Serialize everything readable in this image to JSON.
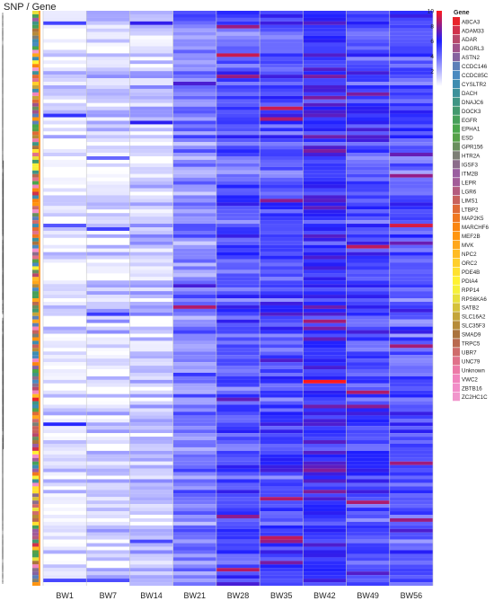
{
  "header": {
    "corner_title": "SNP / Gene"
  },
  "chart_data": {
    "type": "heatmap",
    "title": "",
    "xlabel": "",
    "ylabel": "",
    "columns": [
      "BW1",
      "BW7",
      "BW14",
      "BW21",
      "BW28",
      "BW35",
      "BW42",
      "BW49",
      "BW56"
    ],
    "row_count": 162,
    "colorbar": {
      "ticks": [
        2,
        4,
        6,
        8,
        10
      ],
      "range": [
        0,
        10
      ],
      "stops": [
        "#ffffff",
        "#1e1eff",
        "#ff1a1a"
      ]
    },
    "dendrogram": "rows",
    "annotation_column": "Gene",
    "legend": {
      "title": "Gene",
      "position": "right",
      "items": [
        {
          "label": "ABCA3",
          "color": "#e8242a"
        },
        {
          "label": "ADAM33",
          "color": "#d1314b"
        },
        {
          "label": "ADAR",
          "color": "#b8496b"
        },
        {
          "label": "ADGRL3",
          "color": "#a0538a"
        },
        {
          "label": "ASTN2",
          "color": "#86639f"
        },
        {
          "label": "CCDC146",
          "color": "#5d7fb8"
        },
        {
          "label": "CCDC85C",
          "color": "#4a8ac0"
        },
        {
          "label": "CYSLTR2",
          "color": "#3f8db0"
        },
        {
          "label": "DACH",
          "color": "#3d919a"
        },
        {
          "label": "DNAJC6",
          "color": "#3f9584"
        },
        {
          "label": "DOCK3",
          "color": "#43996e"
        },
        {
          "label": "EGFR",
          "color": "#47a05a"
        },
        {
          "label": "EPHA1",
          "color": "#4aa64b"
        },
        {
          "label": "ESD",
          "color": "#56a148"
        },
        {
          "label": "GPR156",
          "color": "#6a8f5e"
        },
        {
          "label": "HTR2A",
          "color": "#7d7f76"
        },
        {
          "label": "IGSF3",
          "color": "#8c6d8b"
        },
        {
          "label": "ITM2B",
          "color": "#9a5ea0"
        },
        {
          "label": "LEPR",
          "color": "#a25c98"
        },
        {
          "label": "LGR6",
          "color": "#b45c7f"
        },
        {
          "label": "LIMS1",
          "color": "#c8625d"
        },
        {
          "label": "LTBP2",
          "color": "#df6b37"
        },
        {
          "label": "MAP2K5",
          "color": "#f07820"
        },
        {
          "label": "MARCHF6",
          "color": "#fa8510"
        },
        {
          "label": "MEF2B",
          "color": "#ff950f"
        },
        {
          "label": "MVK",
          "color": "#ffa71b"
        },
        {
          "label": "NPC2",
          "color": "#ffbb24"
        },
        {
          "label": "ORC2",
          "color": "#ffcf2a"
        },
        {
          "label": "PDE4B",
          "color": "#ffe12f"
        },
        {
          "label": "PDIA4",
          "color": "#fff233"
        },
        {
          "label": "RPP14",
          "color": "#f6f13a"
        },
        {
          "label": "RPS6KA6",
          "color": "#e8e03c"
        },
        {
          "label": "SATB2",
          "color": "#d5c23a"
        },
        {
          "label": "SLC16A2",
          "color": "#c4a53a"
        },
        {
          "label": "SLC35F3",
          "color": "#b68b3a"
        },
        {
          "label": "SMAD9",
          "color": "#aa733d"
        },
        {
          "label": "TRPC5",
          "color": "#b96a4f"
        },
        {
          "label": "UBR7",
          "color": "#cf6c6b"
        },
        {
          "label": "UNC79",
          "color": "#e0728a"
        },
        {
          "label": "Unknown",
          "color": "#ec7aa7"
        },
        {
          "label": "VWC2",
          "color": "#f184bd"
        },
        {
          "label": "ZBTB16",
          "color": "#f28dc8"
        },
        {
          "label": "ZC2HC1C",
          "color": "#f196cc"
        }
      ]
    },
    "column_means": [
      0.6,
      1.0,
      1.4,
      3.4,
      4.6,
      4.8,
      5.8,
      4.8,
      4.6
    ]
  }
}
